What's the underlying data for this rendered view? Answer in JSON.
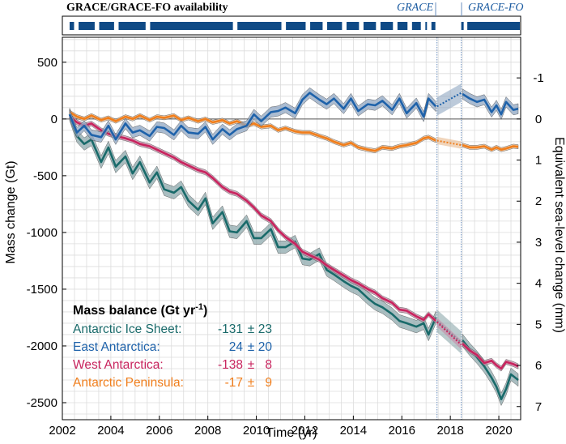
{
  "availability": {
    "title": "GRACE/GRACE-FO availability",
    "missions": [
      "GRACE",
      "GRACE-FO"
    ],
    "color": "#0f4a86"
  },
  "chart_data": {
    "type": "line",
    "xlabel": "Time (yr)",
    "ylabel": "Mass change (Gt)",
    "y2label": "Equivalent sea-level change (mm)",
    "xlim": [
      2002,
      2020.9
    ],
    "ylim": [
      -2650,
      720
    ],
    "xticks": [
      2002,
      2004,
      2006,
      2008,
      2010,
      2012,
      2014,
      2016,
      2018,
      2020
    ],
    "yticks": [
      500,
      0,
      -500,
      -1000,
      -1500,
      -2000,
      -2500
    ],
    "y2ticks": [
      -1,
      0,
      1,
      2,
      3,
      4,
      5,
      6,
      7
    ],
    "grace_end": 2017.45,
    "gracefo_start": 2018.45,
    "legend": {
      "title": "Mass balance (Gt yr",
      "title_sup": "-1",
      "title_close": ")",
      "entries": [
        {
          "name": "Antarctic Ice Sheet:",
          "rate": "-131",
          "pm": "±",
          "unc": "23",
          "color": "#196a6a"
        },
        {
          "name": "East Antarctica:",
          "rate": "24",
          "pm": "±",
          "unc": "20",
          "color": "#1e62aa"
        },
        {
          "name": "West Antarctica:",
          "rate": "-138",
          "pm": "±",
          "unc": "8",
          "color": "#c8245e"
        },
        {
          "name": "Antarctic Peninsula:",
          "rate": "-17",
          "pm": "±",
          "unc": "9",
          "color": "#f07e1c"
        }
      ]
    },
    "series": [
      {
        "name": "Antarctic Ice Sheet",
        "color": "#196a6a",
        "band_color": "#8ea8ac",
        "band": 55,
        "points": [
          [
            2002.3,
            40
          ],
          [
            2002.6,
            -150
          ],
          [
            2002.9,
            -220
          ],
          [
            2003.2,
            -180
          ],
          [
            2003.6,
            -380
          ],
          [
            2003.9,
            -250
          ],
          [
            2004.2,
            -420
          ],
          [
            2004.6,
            -330
          ],
          [
            2004.9,
            -480
          ],
          [
            2005.2,
            -380
          ],
          [
            2005.6,
            -560
          ],
          [
            2005.9,
            -470
          ],
          [
            2006.2,
            -620
          ],
          [
            2006.6,
            -650
          ],
          [
            2006.9,
            -600
          ],
          [
            2007.2,
            -720
          ],
          [
            2007.6,
            -800
          ],
          [
            2007.9,
            -700
          ],
          [
            2008.2,
            -920
          ],
          [
            2008.6,
            -820
          ],
          [
            2008.9,
            -990
          ],
          [
            2009.2,
            -1000
          ],
          [
            2009.6,
            -900
          ],
          [
            2009.9,
            -1050
          ],
          [
            2010.2,
            -1050
          ],
          [
            2010.6,
            -970
          ],
          [
            2010.9,
            -1130
          ],
          [
            2011.2,
            -1130
          ],
          [
            2011.6,
            -1080
          ],
          [
            2011.9,
            -1230
          ],
          [
            2012.2,
            -1240
          ],
          [
            2012.6,
            -1190
          ],
          [
            2012.9,
            -1330
          ],
          [
            2013.2,
            -1370
          ],
          [
            2013.6,
            -1430
          ],
          [
            2013.9,
            -1470
          ],
          [
            2014.2,
            -1500
          ],
          [
            2014.6,
            -1580
          ],
          [
            2014.9,
            -1630
          ],
          [
            2015.2,
            -1660
          ],
          [
            2015.6,
            -1720
          ],
          [
            2015.9,
            -1780
          ],
          [
            2016.2,
            -1800
          ],
          [
            2016.6,
            -1830
          ],
          [
            2016.9,
            -1800
          ],
          [
            2017.1,
            -1900
          ],
          [
            2017.4,
            -1750
          ]
        ],
        "gap": [
          [
            2017.45,
            -1780
          ],
          [
            2018.45,
            -1970
          ]
        ],
        "points2": [
          [
            2018.5,
            -1950
          ],
          [
            2018.8,
            -2030
          ],
          [
            2019.1,
            -2100
          ],
          [
            2019.4,
            -2180
          ],
          [
            2019.7,
            -2280
          ],
          [
            2019.9,
            -2360
          ],
          [
            2020.1,
            -2470
          ],
          [
            2020.3,
            -2380
          ],
          [
            2020.5,
            -2250
          ],
          [
            2020.8,
            -2300
          ]
        ]
      },
      {
        "name": "East Antarctica",
        "color": "#1e62aa",
        "band_color": "#8fa6c2",
        "band": 45,
        "points": [
          [
            2002.3,
            40
          ],
          [
            2002.6,
            -120
          ],
          [
            2002.9,
            -60
          ],
          [
            2003.2,
            -140
          ],
          [
            2003.6,
            -160
          ],
          [
            2003.9,
            -60
          ],
          [
            2004.2,
            -180
          ],
          [
            2004.6,
            -40
          ],
          [
            2004.9,
            -120
          ],
          [
            2005.2,
            -100
          ],
          [
            2005.6,
            -150
          ],
          [
            2005.9,
            -70
          ],
          [
            2006.2,
            -80
          ],
          [
            2006.6,
            -140
          ],
          [
            2006.9,
            -60
          ],
          [
            2007.2,
            -120
          ],
          [
            2007.6,
            -130
          ],
          [
            2007.9,
            -70
          ],
          [
            2008.2,
            -180
          ],
          [
            2008.6,
            -90
          ],
          [
            2008.9,
            -140
          ],
          [
            2009.2,
            -90
          ],
          [
            2009.6,
            -60
          ],
          [
            2009.9,
            40
          ],
          [
            2010.2,
            -20
          ],
          [
            2010.6,
            60
          ],
          [
            2010.9,
            70
          ],
          [
            2011.2,
            100
          ],
          [
            2011.6,
            50
          ],
          [
            2011.9,
            170
          ],
          [
            2012.2,
            230
          ],
          [
            2012.6,
            170
          ],
          [
            2012.9,
            130
          ],
          [
            2013.2,
            180
          ],
          [
            2013.6,
            90
          ],
          [
            2013.9,
            180
          ],
          [
            2014.2,
            70
          ],
          [
            2014.6,
            130
          ],
          [
            2014.9,
            120
          ],
          [
            2015.2,
            160
          ],
          [
            2015.6,
            80
          ],
          [
            2015.9,
            180
          ],
          [
            2016.2,
            50
          ],
          [
            2016.6,
            140
          ],
          [
            2016.9,
            20
          ],
          [
            2017.1,
            180
          ],
          [
            2017.4,
            110
          ]
        ],
        "gap": [
          [
            2017.45,
            110
          ],
          [
            2018.45,
            230
          ]
        ],
        "points2": [
          [
            2018.5,
            220
          ],
          [
            2018.8,
            180
          ],
          [
            2019.1,
            150
          ],
          [
            2019.4,
            170
          ],
          [
            2019.7,
            60
          ],
          [
            2019.9,
            120
          ],
          [
            2020.1,
            40
          ],
          [
            2020.3,
            150
          ],
          [
            2020.6,
            80
          ],
          [
            2020.8,
            90
          ]
        ]
      },
      {
        "name": "West Antarctica",
        "color": "#c8245e",
        "band_color": "#c68aa6",
        "band": 22,
        "points": [
          [
            2002.3,
            20
          ],
          [
            2002.6,
            -30
          ],
          [
            2002.9,
            -60
          ],
          [
            2003.2,
            -40
          ],
          [
            2003.6,
            -100
          ],
          [
            2003.9,
            -130
          ],
          [
            2004.2,
            -150
          ],
          [
            2004.6,
            -170
          ],
          [
            2004.9,
            -190
          ],
          [
            2005.2,
            -220
          ],
          [
            2005.6,
            -240
          ],
          [
            2005.9,
            -270
          ],
          [
            2006.2,
            -300
          ],
          [
            2006.6,
            -340
          ],
          [
            2006.9,
            -380
          ],
          [
            2007.2,
            -410
          ],
          [
            2007.6,
            -450
          ],
          [
            2007.9,
            -470
          ],
          [
            2008.2,
            -520
          ],
          [
            2008.6,
            -600
          ],
          [
            2008.9,
            -640
          ],
          [
            2009.2,
            -660
          ],
          [
            2009.6,
            -720
          ],
          [
            2009.9,
            -780
          ],
          [
            2010.2,
            -850
          ],
          [
            2010.6,
            -900
          ],
          [
            2010.9,
            -980
          ],
          [
            2011.2,
            -1040
          ],
          [
            2011.6,
            -1100
          ],
          [
            2011.9,
            -1170
          ],
          [
            2012.2,
            -1200
          ],
          [
            2012.6,
            -1240
          ],
          [
            2012.9,
            -1290
          ],
          [
            2013.2,
            -1330
          ],
          [
            2013.6,
            -1380
          ],
          [
            2013.9,
            -1420
          ],
          [
            2014.2,
            -1450
          ],
          [
            2014.6,
            -1500
          ],
          [
            2014.9,
            -1530
          ],
          [
            2015.2,
            -1580
          ],
          [
            2015.6,
            -1620
          ],
          [
            2015.9,
            -1680
          ],
          [
            2016.2,
            -1690
          ],
          [
            2016.6,
            -1740
          ],
          [
            2016.9,
            -1770
          ],
          [
            2017.1,
            -1720
          ],
          [
            2017.4,
            -1780
          ]
        ],
        "gap": [
          [
            2017.45,
            -1790
          ],
          [
            2018.45,
            -1990
          ]
        ],
        "points2": [
          [
            2018.5,
            -1980
          ],
          [
            2018.8,
            -2040
          ],
          [
            2019.1,
            -2080
          ],
          [
            2019.4,
            -2150
          ],
          [
            2019.7,
            -2130
          ],
          [
            2019.9,
            -2170
          ],
          [
            2020.1,
            -2200
          ],
          [
            2020.3,
            -2140
          ],
          [
            2020.6,
            -2160
          ],
          [
            2020.8,
            -2180
          ]
        ]
      },
      {
        "name": "Antarctic Peninsula",
        "color": "#f07e1c",
        "band_color": "#e8b98e",
        "band": 18,
        "points": [
          [
            2002.3,
            60
          ],
          [
            2002.6,
            20
          ],
          [
            2002.9,
            0
          ],
          [
            2003.2,
            30
          ],
          [
            2003.6,
            -10
          ],
          [
            2003.9,
            10
          ],
          [
            2004.2,
            -20
          ],
          [
            2004.6,
            20
          ],
          [
            2004.9,
            0
          ],
          [
            2005.2,
            30
          ],
          [
            2005.6,
            -10
          ],
          [
            2005.9,
            20
          ],
          [
            2006.2,
            10
          ],
          [
            2006.6,
            30
          ],
          [
            2006.9,
            -10
          ],
          [
            2007.2,
            10
          ],
          [
            2007.6,
            -20
          ],
          [
            2007.9,
            0
          ],
          [
            2008.2,
            -30
          ],
          [
            2008.6,
            -10
          ],
          [
            2008.9,
            -40
          ],
          [
            2009.2,
            -20
          ],
          [
            2009.6,
            -60
          ],
          [
            2009.9,
            -40
          ],
          [
            2010.2,
            -70
          ],
          [
            2010.6,
            -60
          ],
          [
            2010.9,
            -100
          ],
          [
            2011.2,
            -80
          ],
          [
            2011.6,
            -110
          ],
          [
            2011.9,
            -120
          ],
          [
            2012.2,
            -120
          ],
          [
            2012.6,
            -150
          ],
          [
            2012.9,
            -170
          ],
          [
            2013.2,
            -200
          ],
          [
            2013.6,
            -230
          ],
          [
            2013.9,
            -210
          ],
          [
            2014.2,
            -250
          ],
          [
            2014.6,
            -270
          ],
          [
            2014.9,
            -280
          ],
          [
            2015.2,
            -250
          ],
          [
            2015.6,
            -260
          ],
          [
            2015.9,
            -240
          ],
          [
            2016.2,
            -230
          ],
          [
            2016.6,
            -210
          ],
          [
            2016.9,
            -170
          ],
          [
            2017.1,
            -160
          ],
          [
            2017.4,
            -190
          ]
        ],
        "gap": [
          [
            2017.45,
            -190
          ],
          [
            2018.45,
            -230
          ]
        ],
        "points2": [
          [
            2018.5,
            -230
          ],
          [
            2018.8,
            -250
          ],
          [
            2019.1,
            -250
          ],
          [
            2019.4,
            -240
          ],
          [
            2019.7,
            -270
          ],
          [
            2019.9,
            -250
          ],
          [
            2020.1,
            -270
          ],
          [
            2020.3,
            -260
          ],
          [
            2020.6,
            -240
          ],
          [
            2020.8,
            -245
          ]
        ]
      }
    ]
  }
}
